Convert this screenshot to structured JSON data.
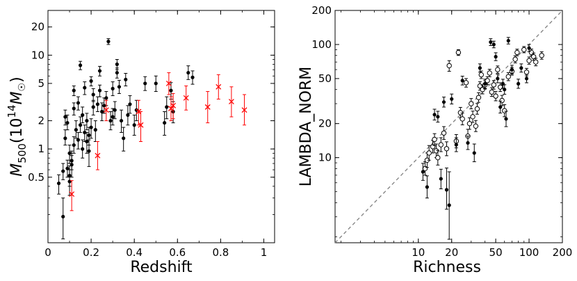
{
  "chart_data": [
    {
      "type": "scatter",
      "xlabel": "Redshift",
      "ylabel_main": "M",
      "ylabel_sub": "500",
      "ylabel_rest": "(10",
      "ylabel_sup": "14",
      "ylabel_msym": "M",
      "ylabel_odot": "☉",
      "ylabel_close": ")",
      "xscale": "linear",
      "yscale": "log",
      "xlim": [
        0,
        1.05
      ],
      "ylim": [
        0.1,
        30
      ],
      "xticks": [
        0,
        0.2,
        0.4,
        0.6,
        0.8,
        1
      ],
      "xtick_labels": [
        "0",
        "0.2",
        "0.4",
        "0.6",
        "0.8",
        "1"
      ],
      "yticks": [
        0.5,
        1,
        2,
        5,
        10,
        20
      ],
      "ytick_labels": [
        "0.5",
        "1",
        "2",
        "5",
        "10",
        "20"
      ],
      "series": [
        {
          "name": "black filled circles",
          "marker": "filled-circle",
          "color": "#000000",
          "points": [
            [
              0.05,
              0.43,
              0.33,
              0.53
            ],
            [
              0.07,
              0.19,
              0.11,
              0.3
            ],
            [
              0.07,
              0.58,
              0.47,
              0.7
            ],
            [
              0.08,
              2.2,
              1.8,
              2.6
            ],
            [
              0.08,
              1.3,
              1.1,
              1.6
            ],
            [
              0.09,
              1.9,
              1.6,
              2.3
            ],
            [
              0.09,
              0.62,
              0.5,
              0.76
            ],
            [
              0.1,
              0.9,
              0.7,
              1.1
            ],
            [
              0.1,
              0.52,
              0.4,
              0.66
            ],
            [
              0.1,
              0.45,
              0.32,
              0.6
            ],
            [
              0.11,
              0.75,
              0.6,
              0.95
            ],
            [
              0.11,
              0.68,
              0.5,
              0.85
            ],
            [
              0.12,
              1.1,
              0.9,
              1.35
            ],
            [
              0.12,
              4.2,
              3.7,
              4.7
            ],
            [
              0.12,
              2.7,
              2.3,
              3.1
            ],
            [
              0.13,
              1.6,
              1.3,
              2.0
            ],
            [
              0.14,
              3.1,
              2.6,
              3.6
            ],
            [
              0.14,
              1.25,
              1.0,
              1.5
            ],
            [
              0.15,
              1.8,
              1.5,
              2.2
            ],
            [
              0.15,
              7.8,
              7.0,
              8.6
            ],
            [
              0.16,
              2.3,
              1.9,
              2.8
            ],
            [
              0.16,
              1.0,
              0.8,
              1.25
            ],
            [
              0.17,
              4.5,
              3.8,
              5.2
            ],
            [
              0.17,
              1.5,
              1.2,
              1.8
            ],
            [
              0.18,
              1.2,
              0.9,
              1.5
            ],
            [
              0.18,
              2.0,
              1.6,
              2.4
            ],
            [
              0.19,
              0.95,
              0.65,
              1.25
            ],
            [
              0.19,
              1.4,
              1.1,
              1.7
            ],
            [
              0.2,
              5.3,
              4.7,
              5.9
            ],
            [
              0.2,
              1.7,
              1.3,
              2.1
            ],
            [
              0.21,
              2.8,
              2.3,
              3.3
            ],
            [
              0.21,
              3.8,
              3.2,
              4.4
            ],
            [
              0.22,
              1.6,
              1.2,
              2.0
            ],
            [
              0.23,
              3.0,
              2.5,
              3.6
            ],
            [
              0.24,
              6.8,
              6.0,
              7.6
            ],
            [
              0.24,
              4.2,
              3.6,
              4.8
            ],
            [
              0.25,
              2.5,
              2.0,
              3.1
            ],
            [
              0.26,
              2.9,
              2.4,
              3.5
            ],
            [
              0.27,
              3.5,
              2.9,
              4.1
            ],
            [
              0.28,
              14.0,
              13.0,
              15.0
            ],
            [
              0.29,
              2.0,
              1.6,
              2.5
            ],
            [
              0.3,
              2.2,
              1.8,
              2.7
            ],
            [
              0.3,
              4.4,
              3.7,
              5.2
            ],
            [
              0.31,
              2.6,
              2.1,
              3.2
            ],
            [
              0.32,
              8.0,
              7.0,
              9.0
            ],
            [
              0.32,
              6.5,
              5.7,
              7.3
            ],
            [
              0.33,
              4.6,
              3.9,
              5.4
            ],
            [
              0.34,
              2.0,
              1.5,
              2.6
            ],
            [
              0.35,
              1.3,
              0.95,
              1.7
            ],
            [
              0.36,
              5.5,
              4.7,
              6.4
            ],
            [
              0.37,
              2.3,
              1.8,
              2.9
            ],
            [
              0.38,
              3.0,
              2.4,
              3.7
            ],
            [
              0.4,
              1.8,
              1.4,
              2.3
            ],
            [
              0.41,
              2.6,
              2.0,
              3.3
            ],
            [
              0.45,
              5.0,
              4.2,
              5.9
            ],
            [
              0.5,
              5.0,
              4.1,
              6.0
            ],
            [
              0.54,
              1.9,
              1.4,
              2.5
            ],
            [
              0.55,
              2.8,
              2.1,
              3.6
            ],
            [
              0.57,
              4.2,
              3.4,
              5.1
            ],
            [
              0.58,
              2.5,
              1.9,
              3.2
            ],
            [
              0.65,
              6.5,
              5.5,
              7.7
            ],
            [
              0.67,
              5.8,
              4.9,
              6.8
            ]
          ]
        },
        {
          "name": "red crosses",
          "marker": "x",
          "color": "#ff0000",
          "points": [
            [
              0.11,
              0.33,
              0.22,
              0.46
            ],
            [
              0.23,
              0.85,
              0.6,
              1.2
            ],
            [
              0.27,
              2.6,
              2.0,
              3.3
            ],
            [
              0.42,
              2.5,
              1.8,
              3.3
            ],
            [
              0.43,
              1.8,
              1.2,
              2.5
            ],
            [
              0.56,
              5.0,
              3.8,
              6.5
            ],
            [
              0.57,
              2.7,
              2.0,
              3.6
            ],
            [
              0.58,
              2.9,
              2.1,
              3.9
            ],
            [
              0.64,
              3.5,
              2.6,
              4.7
            ],
            [
              0.74,
              2.8,
              1.9,
              4.1
            ],
            [
              0.79,
              4.6,
              3.4,
              6.2
            ],
            [
              0.85,
              3.2,
              2.2,
              4.6
            ],
            [
              0.91,
              2.6,
              1.8,
              3.8
            ]
          ]
        }
      ]
    },
    {
      "type": "scatter",
      "xlabel": "Richness",
      "ylabel": "LAMBDA_NORM",
      "xscale": "log",
      "yscale": "log",
      "xlim": [
        1.77,
        200
      ],
      "ylim": [
        1.77,
        200
      ],
      "xticks": [
        10,
        20,
        50,
        100,
        200
      ],
      "xtick_labels": [
        "10",
        "20",
        "50",
        "100",
        "200"
      ],
      "yticks": [
        10,
        20,
        50,
        100,
        200
      ],
      "ytick_labels": [
        "10",
        "20",
        "50",
        "100",
        "200"
      ],
      "reference_line": "y = x (dashed gray)",
      "series": [
        {
          "name": "open circles",
          "marker": "open-circle",
          "color": "#000000",
          "points": [
            [
              11.5,
              8.0,
              7.0,
              9.2
            ],
            [
              12.0,
              9.5,
              8.2,
              11.0
            ],
            [
              12.5,
              11.0,
              9.5,
              12.8
            ],
            [
              13.5,
              12.5,
              11.0,
              14.2
            ],
            [
              14.0,
              14.5,
              12.8,
              16.3
            ],
            [
              14.5,
              11.5,
              10.0,
              13.2
            ],
            [
              15.0,
              10.0,
              8.6,
              11.6
            ],
            [
              16.0,
              13.0,
              11.3,
              15.0
            ],
            [
              17.0,
              16.5,
              14.5,
              18.8
            ],
            [
              18.0,
              12.0,
              10.4,
              13.8
            ],
            [
              19.0,
              65.0,
              58.0,
              72.0
            ],
            [
              22.0,
              14.0,
              12.2,
              16.0
            ],
            [
              23.0,
              85.0,
              80.0,
              90.0
            ],
            [
              24.0,
              25.0,
              22.5,
              27.8
            ],
            [
              25.0,
              22.0,
              19.5,
              24.8
            ],
            [
              27.0,
              46.0,
              42.0,
              50.0
            ],
            [
              28.0,
              15.5,
              13.5,
              17.8
            ],
            [
              29.0,
              20.0,
              17.8,
              22.5
            ],
            [
              30.0,
              30.0,
              27.0,
              33.3
            ],
            [
              31.0,
              23.0,
              20.5,
              25.8
            ],
            [
              33.0,
              19.0,
              17.0,
              21.3
            ],
            [
              34.0,
              27.0,
              24.2,
              30.1
            ],
            [
              35.0,
              34.0,
              30.8,
              37.5
            ],
            [
              36.0,
              43.0,
              39.5,
              46.8
            ],
            [
              37.0,
              54.0,
              50.0,
              58.3
            ],
            [
              38.0,
              40.0,
              36.6,
              43.7
            ],
            [
              40.0,
              44.0,
              40.4,
              47.9
            ],
            [
              42.0,
              48.0,
              44.3,
              52.0
            ],
            [
              44.0,
              56.0,
              51.9,
              60.4
            ],
            [
              46.0,
              38.0,
              34.8,
              41.5
            ],
            [
              48.0,
              44.0,
              40.3,
              48.0
            ],
            [
              50.0,
              35.0,
              31.8,
              38.5
            ],
            [
              52.0,
              60.0,
              55.7,
              64.6
            ],
            [
              55.0,
              42.0,
              38.4,
              45.9
            ],
            [
              57.0,
              32.0,
              28.8,
              35.5
            ],
            [
              60.0,
              26.0,
              23.0,
              29.4
            ],
            [
              65.0,
              52.0,
              47.9,
              56.4
            ],
            [
              70.0,
              58.0,
              53.6,
              62.8
            ],
            [
              75.0,
              74.0,
              68.8,
              79.6
            ],
            [
              78.0,
              85.0,
              79.5,
              90.9
            ],
            [
              90.0,
              90.0,
              84.5,
              95.9
            ],
            [
              95.0,
              57.0,
              52.8,
              61.5
            ],
            [
              100.0,
              72.0,
              66.9,
              77.5
            ],
            [
              105.0,
              85.0,
              79.3,
              91.1
            ],
            [
              110.0,
              78.0,
              72.4,
              84.0
            ],
            [
              115.0,
              70.0,
              64.8,
              75.6
            ],
            [
              130.0,
              80.0,
              74.1,
              86.3
            ]
          ]
        },
        {
          "name": "filled circles",
          "marker": "filled-circle",
          "color": "#000000",
          "points": [
            [
              11.0,
              7.5,
              6.3,
              8.9
            ],
            [
              12.0,
              5.5,
              4.4,
              6.9
            ],
            [
              14.0,
              24.0,
              21.5,
              26.8
            ],
            [
              15.0,
              23.0,
              20.6,
              25.7
            ],
            [
              16.0,
              6.5,
              5.3,
              7.9
            ],
            [
              17.0,
              31.0,
              28.0,
              34.3
            ],
            [
              18.0,
              5.2,
              3.5,
              8.1
            ],
            [
              19.0,
              3.8,
              1.9,
              7.5
            ],
            [
              20.0,
              33.0,
              29.8,
              36.5
            ],
            [
              22.0,
              13.0,
              11.3,
              15.0
            ],
            [
              25.0,
              48.0,
              43.9,
              52.5
            ],
            [
              28.0,
              13.5,
              11.8,
              15.5
            ],
            [
              32.0,
              11.0,
              9.2,
              13.2
            ],
            [
              36.0,
              62.0,
              57.0,
              67.4
            ],
            [
              40.0,
              45.0,
              41.0,
              49.4
            ],
            [
              45.0,
              105.0,
              98.0,
              112.5
            ],
            [
              48.0,
              100.0,
              93.5,
              107.0
            ],
            [
              50.0,
              78.0,
              72.0,
              84.5
            ],
            [
              52.0,
              50.0,
              45.9,
              54.5
            ],
            [
              55.0,
              28.0,
              24.8,
              31.6
            ],
            [
              58.0,
              45.0,
              41.1,
              49.3
            ],
            [
              60.0,
              40.0,
              36.3,
              44.1
            ],
            [
              62.0,
              22.0,
              18.8,
              25.7
            ],
            [
              65.0,
              108.0,
              101.0,
              115.5
            ],
            [
              70.0,
              60.0,
              55.0,
              65.5
            ],
            [
              80.0,
              45.0,
              41.0,
              49.4
            ],
            [
              85.0,
              62.0,
              57.0,
              67.4
            ],
            [
              95.0,
              50.0,
              45.9,
              54.5
            ],
            [
              100.0,
              93.0,
              86.5,
              100.0
            ]
          ]
        }
      ]
    }
  ]
}
